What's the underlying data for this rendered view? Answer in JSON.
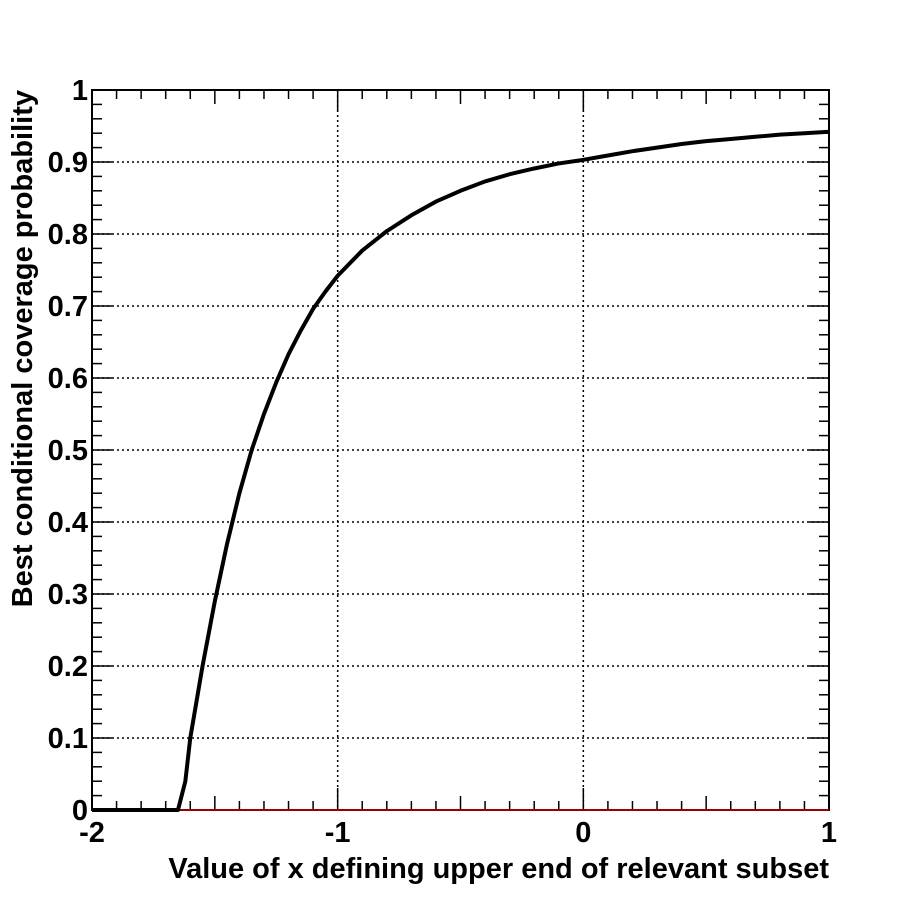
{
  "chart_data": {
    "type": "line",
    "title": "",
    "xlabel": "Value of x defining upper end of relevant subset",
    "ylabel": "Best conditional coverage probability",
    "xlim": [
      -2,
      1
    ],
    "ylim": [
      0,
      1
    ],
    "x_ticks": [
      {
        "value": -2,
        "label": "-2"
      },
      {
        "value": -1,
        "label": "-1"
      },
      {
        "value": 0,
        "label": "0"
      },
      {
        "value": 1,
        "label": "1"
      }
    ],
    "y_ticks": [
      {
        "value": 0,
        "label": "0"
      },
      {
        "value": 0.1,
        "label": "0.1"
      },
      {
        "value": 0.2,
        "label": "0.2"
      },
      {
        "value": 0.3,
        "label": "0.3"
      },
      {
        "value": 0.4,
        "label": "0.4"
      },
      {
        "value": 0.5,
        "label": "0.5"
      },
      {
        "value": 0.6,
        "label": "0.6"
      },
      {
        "value": 0.7,
        "label": "0.7"
      },
      {
        "value": 0.8,
        "label": "0.8"
      },
      {
        "value": 0.9,
        "label": "0.9"
      },
      {
        "value": 1,
        "label": "1"
      }
    ],
    "grid": true,
    "colors": {
      "line": "#000000",
      "grid": "#000000",
      "baseline": "#990000"
    },
    "series": [
      {
        "x": [
          -2.0,
          -1.8,
          -1.65,
          -1.62,
          -1.6,
          -1.55,
          -1.5,
          -1.45,
          -1.4,
          -1.35,
          -1.3,
          -1.25,
          -1.2,
          -1.15,
          -1.1,
          -1.05,
          -1.0,
          -0.9,
          -0.8,
          -0.7,
          -0.6,
          -0.5,
          -0.4,
          -0.3,
          -0.2,
          -0.1,
          0.0,
          0.1,
          0.2,
          0.3,
          0.4,
          0.5,
          0.6,
          0.7,
          0.8,
          0.9,
          1.0
        ],
        "y": [
          0.0,
          0.0,
          0.0,
          0.04,
          0.1,
          0.2,
          0.29,
          0.37,
          0.44,
          0.5,
          0.55,
          0.594,
          0.633,
          0.666,
          0.696,
          0.72,
          0.742,
          0.777,
          0.804,
          0.826,
          0.845,
          0.86,
          0.873,
          0.883,
          0.891,
          0.898,
          0.903,
          0.909,
          0.915,
          0.92,
          0.925,
          0.929,
          0.932,
          0.935,
          0.938,
          0.94,
          0.942
        ]
      }
    ]
  }
}
